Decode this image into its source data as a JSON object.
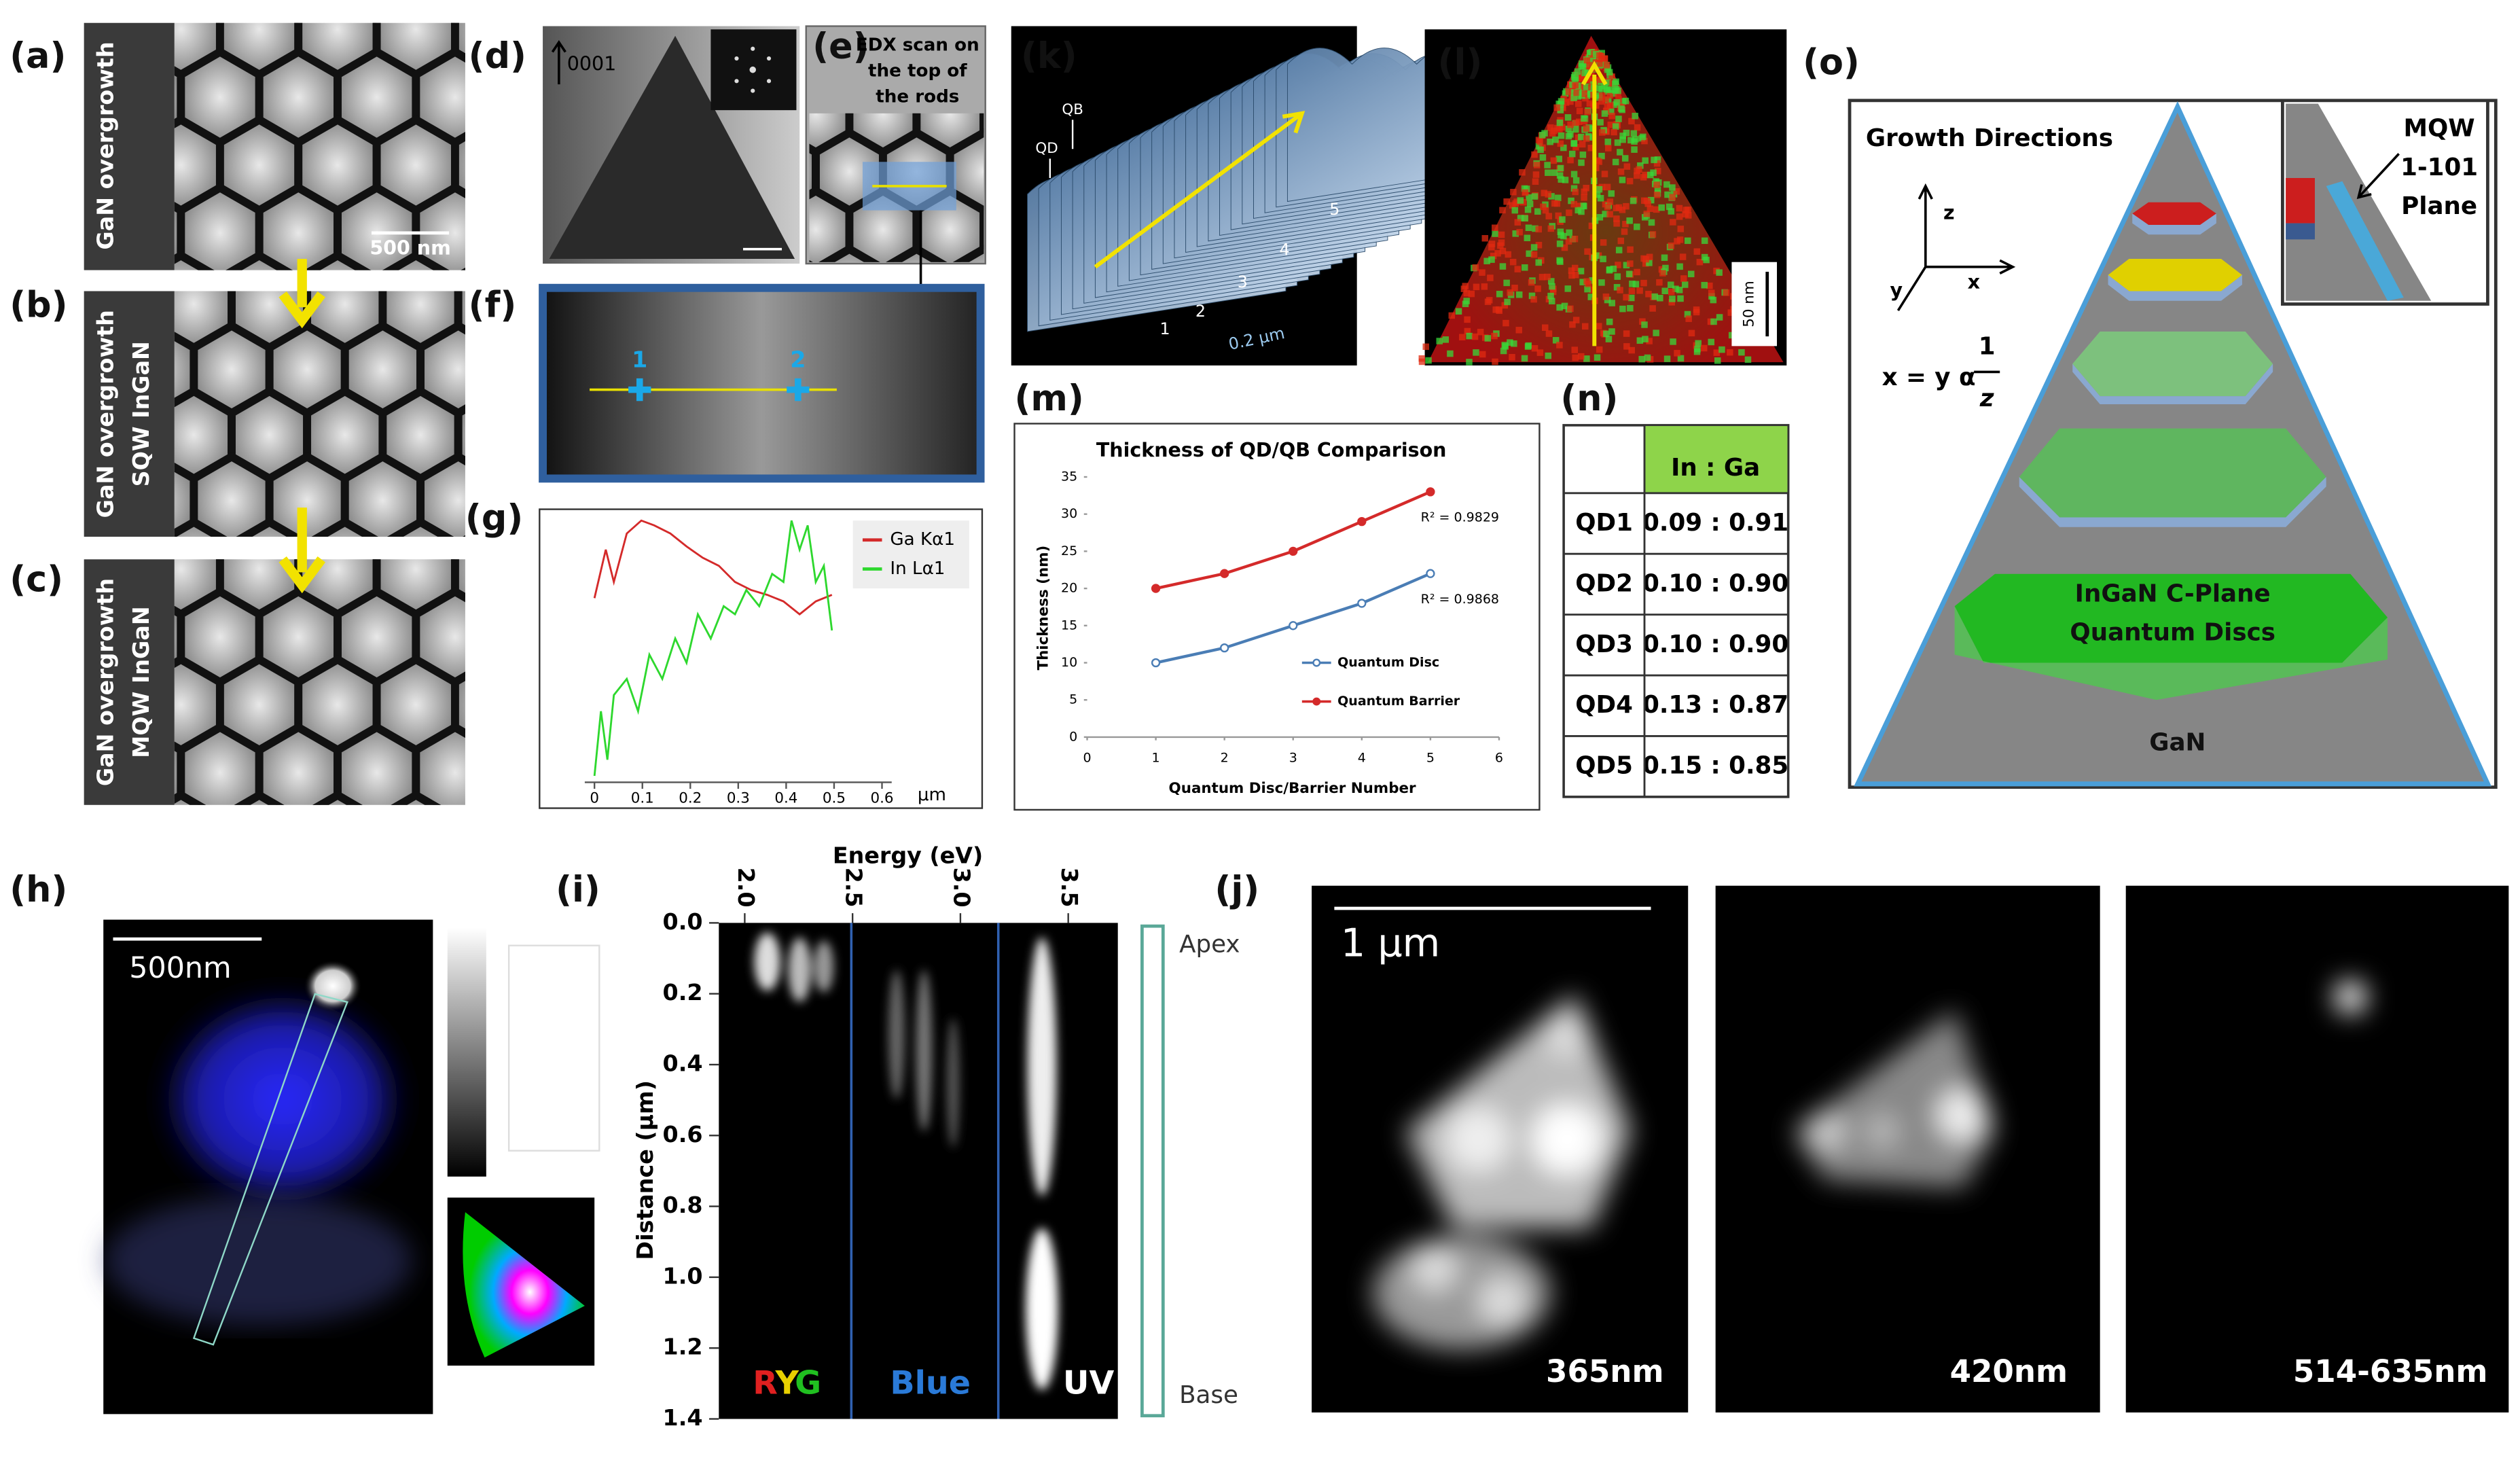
{
  "labels": [
    "(a)",
    "(b)",
    "(c)",
    "(d)",
    "(e)",
    "(f)",
    "(g)",
    "(h)",
    "(i)",
    "(j)",
    "(k)",
    "(l)",
    "(m)",
    "(n)",
    "(o)"
  ],
  "sem": [
    {
      "lines": [
        "GaN overgrowth"
      ]
    },
    {
      "lines": [
        "GaN overgrowth",
        "SQW InGaN"
      ]
    },
    {
      "lines": [
        "GaN overgrowth",
        "MQW InGaN"
      ]
    }
  ],
  "sem_scale": "500 nm",
  "d_axis": "0001",
  "e_caption": [
    "EDX scan on",
    "the top of",
    "the rods"
  ],
  "f_points": [
    "1",
    "2"
  ],
  "g": {
    "legend": [
      "Ga Kα1",
      "In Lα1"
    ],
    "xticks": [
      0,
      0.1,
      0.2,
      0.3,
      0.4,
      0.5,
      0.6
    ],
    "xlim": [
      0,
      0.6
    ],
    "unit": "μm"
  },
  "h_scale": "500nm",
  "i": {
    "xlabel": "Energy (eV)",
    "ylabel": "Distance (μm)",
    "xlim": [
      1.88,
      3.73
    ],
    "xticks": [
      {
        "value": 2,
        "label": "2.0"
      },
      2.5,
      {
        "value": 3,
        "label": "3.0"
      },
      3.5
    ],
    "ylim": [
      0,
      1.4
    ],
    "yticks": [
      {
        "value": 0,
        "label": "0.0"
      },
      0.2,
      0.4,
      0.6,
      0.8,
      {
        "value": 1,
        "label": "1.0"
      },
      1.2,
      1.4
    ],
    "ryg": [
      "R",
      "Y",
      "G"
    ],
    "blue": "Blue",
    "uv": "UV",
    "apex": "Apex",
    "base": "Base"
  },
  "j": {
    "scale": "1 μm",
    "wavelengths": [
      "365nm",
      "420nm",
      "514-635nm"
    ]
  },
  "k": {
    "qd": "QD",
    "qb": "QB",
    "numbers": [
      "1",
      "2",
      "3",
      "4",
      "5"
    ],
    "scale": "0.2 μm"
  },
  "l_scale": "50 nm",
  "chart_data": {
    "type": "line",
    "title": "Thickness of QD/QB Comparison",
    "x_label": "Quantum Disc/Barrier Number",
    "y_label": "Thickness (nm)",
    "x": [
      1,
      2,
      3,
      4,
      5
    ],
    "xlim": [
      0,
      6
    ],
    "xticks": [
      0,
      1,
      2,
      3,
      4,
      5,
      6
    ],
    "ylim": [
      0,
      35
    ],
    "yticks": [
      0,
      5,
      10,
      15,
      20,
      25,
      30,
      35
    ],
    "series": [
      {
        "name": "Quantum Disc",
        "color": "#4a7db5",
        "values": [
          10,
          12,
          15,
          18,
          22
        ],
        "r2": "R² = 0.9868"
      },
      {
        "name": "Quantum Barrier",
        "color": "#d42a2a",
        "values": [
          20,
          22,
          25,
          29,
          33
        ],
        "r2": "R² = 0.9829"
      }
    ]
  },
  "table": {
    "header": "In : Ga",
    "rows": [
      [
        "QD1",
        "0.09 : 0.91"
      ],
      [
        "QD2",
        "0.10 : 0.90"
      ],
      [
        "QD3",
        "0.10 : 0.90"
      ],
      [
        "QD4",
        "0.13 : 0.87"
      ],
      [
        "QD5",
        "0.15 : 0.85"
      ]
    ]
  },
  "o": {
    "title": "Growth Directions",
    "axes": [
      "z",
      "y",
      "x"
    ],
    "formula": "x = y α",
    "num": "1",
    "den": "z",
    "mqw": [
      "MQW",
      "1-101",
      "Plane"
    ],
    "discs": [
      "InGaN C-Plane",
      "Quantum Discs"
    ],
    "base": "GaN"
  }
}
